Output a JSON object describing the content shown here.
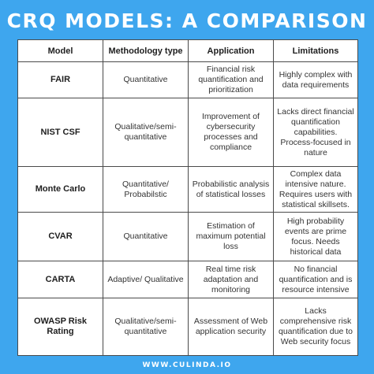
{
  "title": "CRQ MODELS: A COMPARISON",
  "table": {
    "headers": [
      "Model",
      "Methodology type",
      "Application",
      "Limitations"
    ],
    "rows": [
      {
        "model": "FAIR",
        "methodology": "Quantitative",
        "application": "Financial risk quantification and prioritization",
        "limitations": "Highly complex with data requirements"
      },
      {
        "model": "NIST CSF",
        "methodology": "Qualitative/semi-quantitative",
        "application": "Improvement of cybersecurity processes and compliance",
        "limitations": "Lacks direct financial quantification capabilities. Process-focused in nature"
      },
      {
        "model": "Monte Carlo",
        "methodology": "Quantitative/ Probabilstic",
        "application": "Probabilistic analysis of statistical losses",
        "limitations": "Complex data intensive nature. Requires users with statistical skillsets."
      },
      {
        "model": "CVAR",
        "methodology": "Quantitative",
        "application": "Estimation of maximum potential loss",
        "limitations": "High probability events are prime focus. Needs historical data"
      },
      {
        "model": "CARTA",
        "methodology": "Adaptive/ Qualitative",
        "application": "Real time risk adaptation and monitoring",
        "limitations": "No financial quantification and is resource intensive"
      },
      {
        "model": "OWASP Risk Rating",
        "methodology": "Qualitative/semi-quantitative",
        "application": "Assessment of Web application security",
        "limitations": "Lacks comprehensive risk quantification due to Web security focus"
      }
    ]
  },
  "footer": "WWW.CULINDA.IO",
  "colors": {
    "background": "#3ea6ee",
    "table_background": "#ffffff",
    "border": "#4a4a4a",
    "title_text": "#ffffff"
  }
}
